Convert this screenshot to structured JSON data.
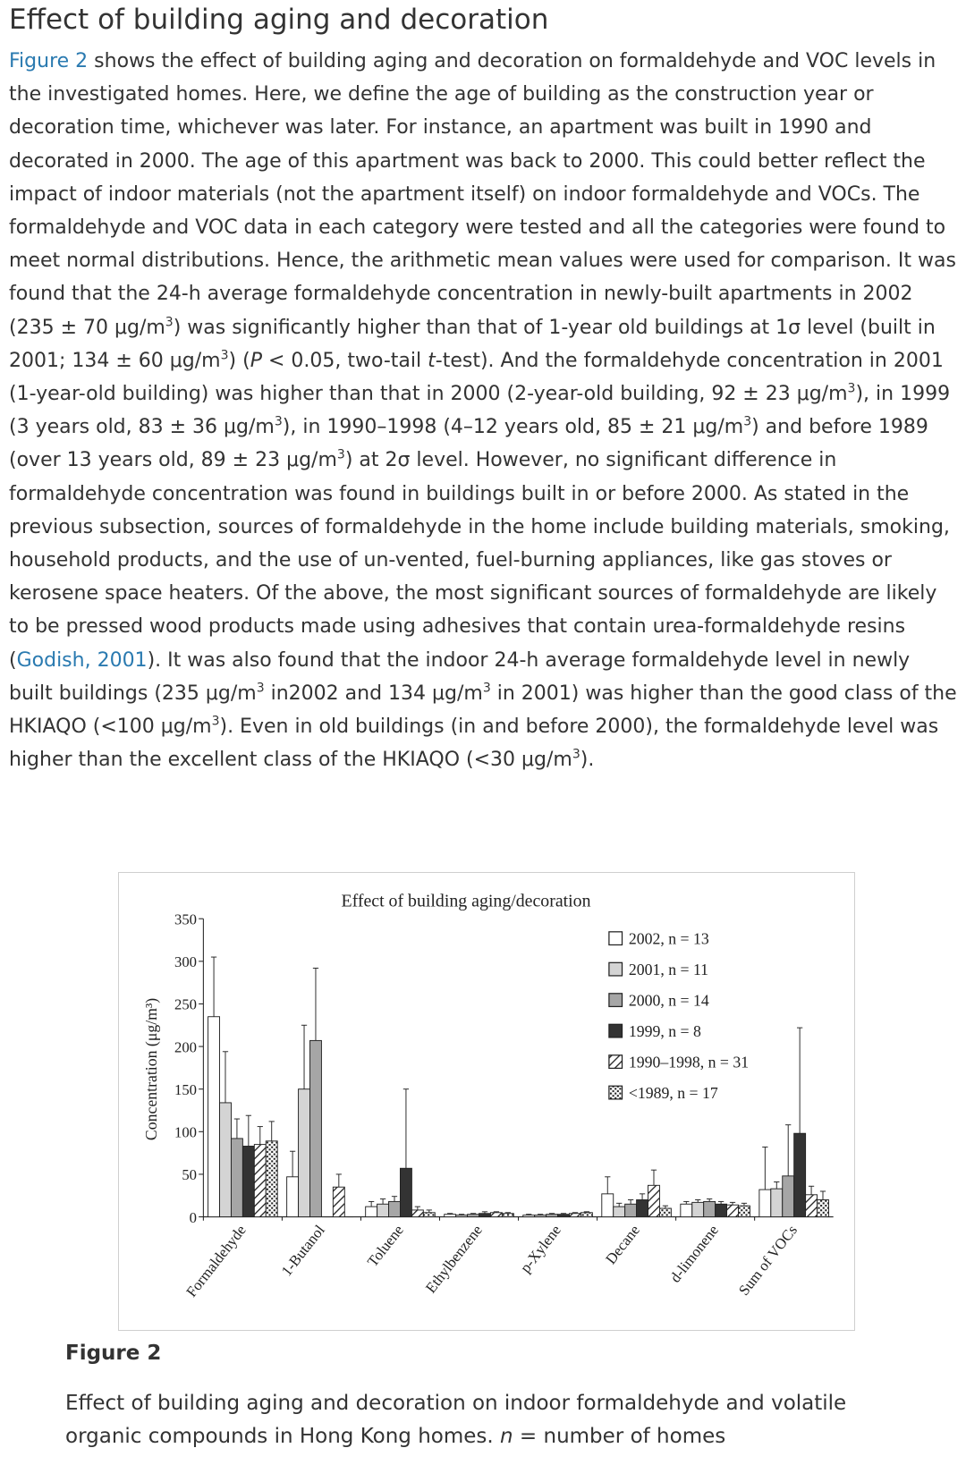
{
  "article": {
    "heading": "Effect of building aging and decoration",
    "paragraph": [
      {
        "link": "Figure 2"
      },
      {
        "text": " shows the effect of building aging and decoration on formaldehyde and VOC levels in the investigated homes. Here, we define the age of building as the construction year or decoration time, whichever was later. For instance, an apartment was built in 1990 and decorated in 2000. The age of this apartment was back to 2000. This could better reflect the impact of indoor materials (not the apartment itself) on indoor formaldehyde and VOCs. The formaldehyde and VOC data in each category were tested and all the categories were found to meet normal distributions. Hence, the arithmetic mean values were used for comparison. It was found that the 24-h average formaldehyde concentration in newly-built apartments in 2002 (235 ± 70 μg/m"
      },
      {
        "sup": "3"
      },
      {
        "text": ") was significantly higher than that of 1-year old buildings at 1σ level (built in 2001; 134 ± 60 μg/m"
      },
      {
        "sup": "3"
      },
      {
        "text": ") ("
      },
      {
        "italic": "P"
      },
      {
        "text": " < 0.05, two-tail "
      },
      {
        "italic": "t"
      },
      {
        "text": "-test). And the formaldehyde concentration in 2001 (1-year-old building) was higher than that in 2000 (2-year-old building, 92 ± 23 μg/m"
      },
      {
        "sup": "3"
      },
      {
        "text": "), in 1999 (3 years old, 83 ± 36 μg/m"
      },
      {
        "sup": "3"
      },
      {
        "text": "), in 1990–1998 (4–12 years old, 85 ± 21 μg/m"
      },
      {
        "sup": "3"
      },
      {
        "text": ") and before 1989 (over 13 years old, 89 ± 23 μg/m"
      },
      {
        "sup": "3"
      },
      {
        "text": ") at 2σ level. However, no significant difference in formaldehyde concentration was found in buildings built in or before 2000. As stated in the previous subsection, sources of formaldehyde in the home include building materials, smoking, household products, and the use of un-vented, fuel-burning appliances, like gas stoves or kerosene space heaters. Of the above, the most significant sources of formaldehyde are likely to be pressed wood products made using adhesives that contain urea-formaldehyde resins ("
      },
      {
        "link": "Godish, 2001"
      },
      {
        "text": "). It was also found that the indoor 24-h average formaldehyde level in newly built buildings (235 μg/m"
      },
      {
        "sup": "3"
      },
      {
        "text": " in2002 and 134 μg/m"
      },
      {
        "sup": "3"
      },
      {
        "text": " in 2001) was higher than the good class of the HKIAQO (<100 μg/m"
      },
      {
        "sup": "3"
      },
      {
        "text": "). Even in old buildings (in and before 2000), the formaldehyde level was higher than the excellent class of the HKIAQO (<30 μg/m"
      },
      {
        "sup": "3"
      },
      {
        "text": ")."
      }
    ],
    "figure_label": "Figure 2",
    "caption": [
      {
        "text": "Effect of building aging and decoration on indoor formaldehyde and volatile organic compounds in Hong Kong homes. "
      },
      {
        "italic": "n"
      },
      {
        "text": " = number of homes"
      }
    ]
  },
  "chart_data": {
    "type": "bar",
    "title": "Effect of building aging/decoration",
    "y_label": "Concentration (μg/m³)",
    "categories": [
      "Formaldehyde",
      "1-Butanol",
      "Toluene",
      "Ethylbenzene",
      "p-Xylene",
      "Decane",
      "d-limonene",
      "Sum of VOCs"
    ],
    "ylim": [
      0,
      350
    ],
    "yticks": [
      0,
      50,
      100,
      150,
      200,
      250,
      300,
      350
    ],
    "legend": "top-right",
    "series": [
      {
        "name": "2002, n = 13",
        "color": "#ffffff",
        "pattern": "solid",
        "values": [
          235,
          47,
          12,
          3,
          2,
          27,
          15,
          32
        ],
        "errors": [
          70,
          30,
          6,
          1,
          1,
          20,
          3,
          50
        ]
      },
      {
        "name": "2001, n = 11",
        "color": "#d4d4d4",
        "pattern": "solid",
        "values": [
          134,
          150,
          15,
          2,
          2,
          12,
          17,
          33
        ],
        "errors": [
          60,
          75,
          6,
          1,
          1,
          4,
          3,
          8
        ]
      },
      {
        "name": "2000, n = 14",
        "color": "#a6a6a6",
        "pattern": "solid",
        "values": [
          92,
          207,
          18,
          3,
          3,
          15,
          18,
          48
        ],
        "errors": [
          23,
          85,
          6,
          1,
          1,
          5,
          3,
          60
        ]
      },
      {
        "name": "1999, n = 8",
        "color": "#333333",
        "pattern": "solid",
        "values": [
          83,
          0,
          57,
          4,
          3,
          20,
          15,
          98
        ],
        "errors": [
          36,
          0,
          93,
          2,
          1,
          7,
          3,
          124
        ]
      },
      {
        "name": "1990–1998, n = 31",
        "color": "#ffffff",
        "pattern": "diagonal",
        "values": [
          85,
          35,
          8,
          5,
          4,
          37,
          14,
          26
        ],
        "errors": [
          21,
          15,
          4,
          1,
          1,
          18,
          3,
          10
        ]
      },
      {
        "name": "<1989, n = 17",
        "color": "#ffffff",
        "pattern": "dotted",
        "values": [
          89,
          0,
          5,
          4,
          5,
          10,
          13,
          20
        ],
        "errors": [
          23,
          0,
          3,
          1,
          1,
          3,
          3,
          10
        ]
      }
    ]
  }
}
